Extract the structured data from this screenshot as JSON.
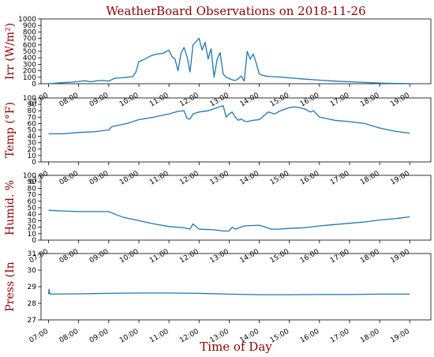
{
  "theme": {
    "text_color": "#8b0000",
    "line_color": "#1f77b4"
  },
  "chart_data": {
    "type": "line",
    "title": "WeatherBoard Observations on 2018-11-26",
    "xlabel": "Time of Day",
    "x_tick_labels": [
      "07:00",
      "08:00",
      "09:00",
      "10:00",
      "11:00",
      "12:00",
      "13:00",
      "14:00",
      "15:00",
      "16:00",
      "17:00",
      "18:00",
      "19:00"
    ],
    "xlim": [
      6.75,
      19.7
    ],
    "panels": [
      {
        "name": "irradiance",
        "ylabel": "Irr (W/m²)",
        "ylim": [
          0,
          1000
        ],
        "y_tick_labels": [
          "0",
          "100",
          "200",
          "300",
          "400",
          "500",
          "600",
          "700",
          "800",
          "900",
          "1000"
        ],
        "x": [
          7.0,
          7.4,
          7.8,
          8.0,
          8.2,
          8.4,
          8.6,
          8.8,
          9.0,
          9.2,
          9.4,
          9.6,
          9.8,
          9.9,
          10.0,
          10.2,
          10.4,
          10.6,
          10.8,
          11.0,
          11.1,
          11.2,
          11.3,
          11.4,
          11.5,
          11.6,
          11.7,
          11.8,
          11.9,
          12.0,
          12.1,
          12.2,
          12.3,
          12.4,
          12.5,
          12.6,
          12.7,
          12.8,
          12.9,
          13.0,
          13.1,
          13.2,
          13.3,
          13.4,
          13.5,
          13.6,
          13.7,
          13.8,
          13.9,
          14.0,
          14.1,
          14.2,
          14.3,
          14.4,
          14.6,
          14.8,
          15.0,
          15.4,
          16.0,
          16.5,
          17.0,
          17.5,
          18.0,
          18.5,
          19.0
        ],
        "y": [
          0,
          15,
          25,
          35,
          45,
          30,
          45,
          50,
          40,
          85,
          90,
          100,
          110,
          180,
          340,
          380,
          430,
          460,
          470,
          520,
          420,
          380,
          200,
          470,
          560,
          420,
          180,
          600,
          650,
          700,
          520,
          640,
          380,
          540,
          100,
          380,
          480,
          150,
          100,
          80,
          60,
          50,
          75,
          120,
          40,
          500,
          380,
          460,
          320,
          150,
          130,
          120,
          115,
          110,
          105,
          100,
          90,
          75,
          55,
          40,
          30,
          20,
          10,
          5,
          2
        ]
      },
      {
        "name": "temperature",
        "ylabel": "Temp (°F)",
        "ylim": [
          0,
          100
        ],
        "y_tick_labels": [
          "0",
          "10",
          "20",
          "30",
          "40",
          "50",
          "60",
          "70",
          "80",
          "90",
          "100"
        ],
        "x": [
          7.0,
          7.5,
          8.0,
          8.5,
          9.0,
          9.1,
          9.3,
          9.6,
          10.0,
          10.5,
          11.0,
          11.3,
          11.5,
          11.6,
          11.7,
          11.8,
          12.0,
          12.3,
          12.6,
          12.8,
          12.9,
          13.0,
          13.1,
          13.2,
          13.3,
          13.4,
          13.5,
          13.6,
          13.8,
          14.0,
          14.3,
          14.5,
          14.7,
          15.0,
          15.2,
          15.5,
          15.7,
          15.8,
          16.0,
          16.2,
          16.5,
          17.0,
          17.5,
          18.0,
          18.5,
          19.0
        ],
        "y": [
          44,
          44,
          46,
          47,
          50,
          55,
          57,
          60,
          66,
          70,
          75,
          79,
          80,
          68,
          67,
          75,
          78,
          80,
          85,
          88,
          70,
          75,
          78,
          70,
          65,
          67,
          64,
          63,
          65,
          66,
          78,
          75,
          80,
          85,
          86,
          83,
          78,
          80,
          70,
          68,
          65,
          63,
          60,
          53,
          48,
          45
        ]
      },
      {
        "name": "humidity",
        "ylabel": "Humid. %",
        "ylim": [
          0,
          100
        ],
        "y_tick_labels": [
          "0",
          "10",
          "20",
          "30",
          "40",
          "50",
          "60",
          "70",
          "80",
          "90",
          "100"
        ],
        "x": [
          7.0,
          7.5,
          8.0,
          8.5,
          9.0,
          9.2,
          9.5,
          10.0,
          10.5,
          11.0,
          11.5,
          11.7,
          11.8,
          12.0,
          12.5,
          12.8,
          13.0,
          13.1,
          13.2,
          13.5,
          14.0,
          14.2,
          14.4,
          14.6,
          15.0,
          15.5,
          16.0,
          16.5,
          17.0,
          17.5,
          18.0,
          18.5,
          19.0
        ],
        "y": [
          46,
          45,
          44,
          44,
          44,
          40,
          35,
          30,
          25,
          21,
          19,
          17,
          25,
          17,
          16,
          14,
          14,
          20,
          17,
          22,
          23,
          20,
          17,
          17,
          18,
          19,
          22,
          24,
          26,
          28,
          31,
          33,
          36
        ]
      },
      {
        "name": "pressure",
        "ylabel": "Press (In",
        "ylim": [
          27,
          31
        ],
        "y_tick_labels": [
          "27",
          "28",
          "29",
          "30",
          "31"
        ],
        "x": [
          7.0,
          7.02,
          7.04,
          7.06,
          8.0,
          9.0,
          10.0,
          11.0,
          12.0,
          13.0,
          14.0,
          15.0,
          16.0,
          17.0,
          18.0,
          19.0
        ],
        "y": [
          28.55,
          28.85,
          28.6,
          28.55,
          28.57,
          28.6,
          28.62,
          28.62,
          28.6,
          28.55,
          28.52,
          28.52,
          28.53,
          28.53,
          28.55,
          28.55
        ]
      }
    ]
  }
}
